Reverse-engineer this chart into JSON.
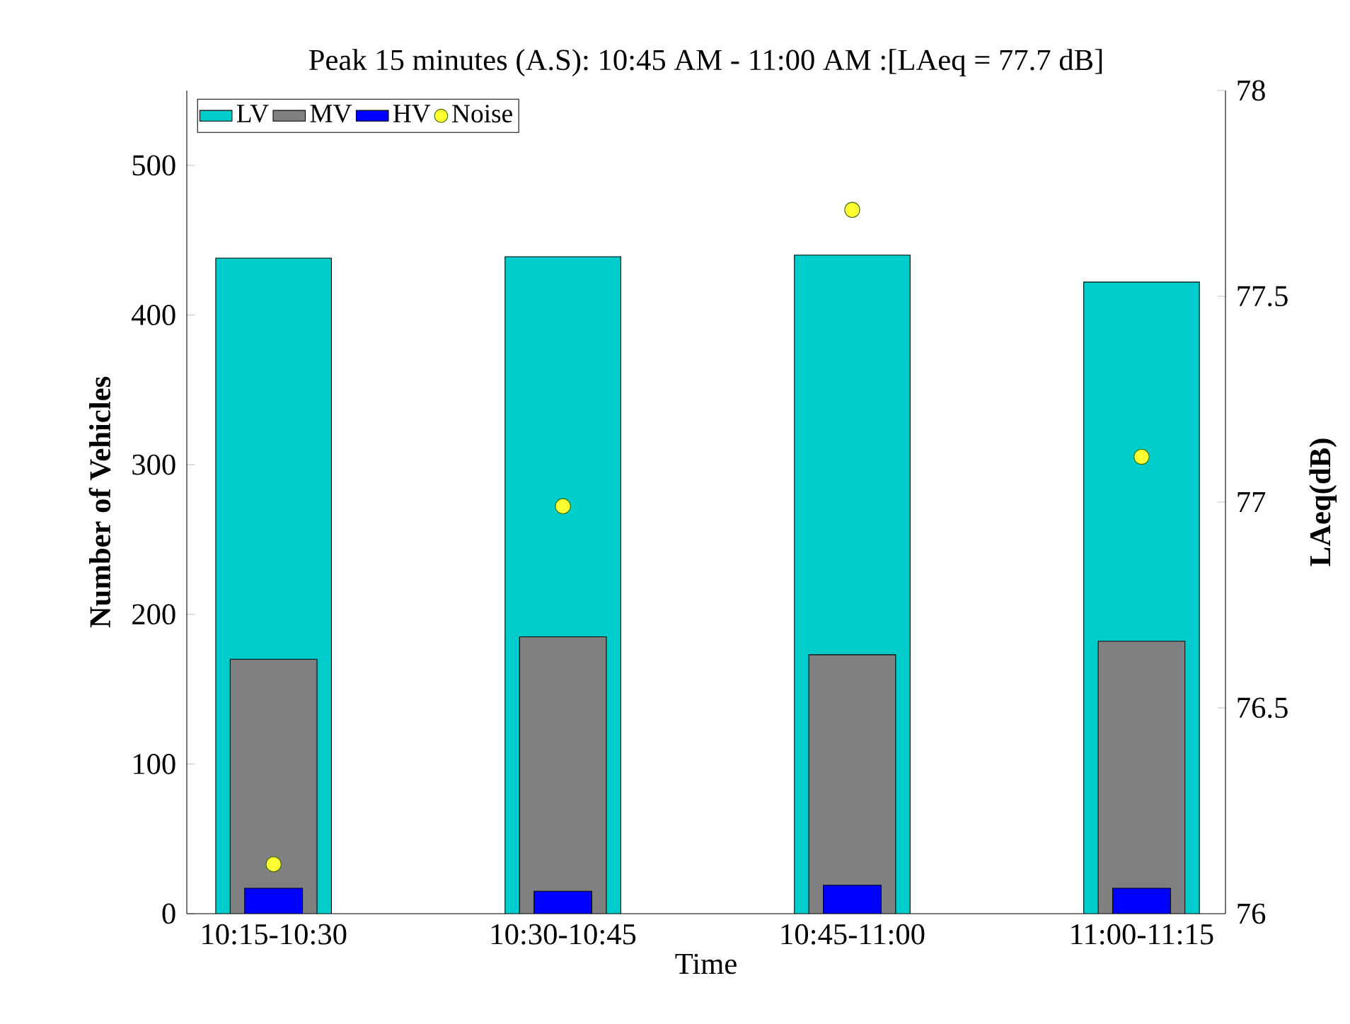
{
  "chart_data": {
    "type": "bar",
    "title": "Peak 15 minutes (A.S): 10:45 AM - 11:00 AM :[LAeq = 77.7 dB]",
    "xlabel": "Time",
    "ylabel": "Number of Vehicles",
    "y2label": "LAeq(dB)",
    "categories": [
      "10:15-10:30",
      "10:30-10:45",
      "10:45-11:00",
      "11:00-11:15"
    ],
    "series": [
      {
        "name": "LV",
        "color": "#00cccc",
        "values": [
          438,
          439,
          440,
          422
        ]
      },
      {
        "name": "MV",
        "color": "#808080",
        "values": [
          170,
          185,
          173,
          182
        ]
      },
      {
        "name": "HV",
        "color": "#0000ff",
        "values": [
          17,
          15,
          19,
          17
        ]
      },
      {
        "name": "Noise",
        "type": "scatter",
        "axis": "y2",
        "color": "#ffff33",
        "values": [
          76.12,
          76.99,
          77.71,
          77.11
        ]
      }
    ],
    "ylim": [
      0,
      550
    ],
    "yticks": [
      0,
      100,
      200,
      300,
      400,
      500
    ],
    "y2lim": [
      76,
      78
    ],
    "y2ticks": [
      76,
      76.5,
      77,
      77.5,
      78
    ],
    "legend": "top left",
    "grid": false
  }
}
